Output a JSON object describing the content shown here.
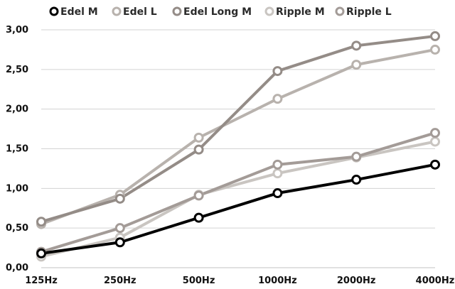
{
  "chart_data": {
    "type": "line",
    "categories": [
      "125Hz",
      "250Hz",
      "500Hz",
      "1000Hz",
      "2000Hz",
      "4000Hz"
    ],
    "ylim": [
      0,
      3
    ],
    "yticks": [
      0,
      0.5,
      1,
      1.5,
      2,
      2.5,
      3
    ],
    "ytick_labels": [
      "0,00",
      "0,50",
      "1,00",
      "1,50",
      "2,00",
      "2,50",
      "3,00"
    ],
    "grid": "horizontal",
    "legend_position": "top",
    "series": [
      {
        "name": "Edel M",
        "color": "#000000",
        "values": [
          0.18,
          0.32,
          0.63,
          0.94,
          1.11,
          1.3
        ]
      },
      {
        "name": "Edel L",
        "color": "#b8b2ad",
        "values": [
          0.55,
          0.92,
          1.64,
          2.13,
          2.56,
          2.75
        ]
      },
      {
        "name": "Edel Long M",
        "color": "#948c87",
        "values": [
          0.58,
          0.87,
          1.49,
          2.48,
          2.8,
          2.92
        ]
      },
      {
        "name": "Ripple M",
        "color": "#c9c5c1",
        "values": [
          0.14,
          0.38,
          0.92,
          1.19,
          1.39,
          1.59
        ]
      },
      {
        "name": "Ripple L",
        "color": "#a39b97",
        "values": [
          0.2,
          0.5,
          0.91,
          1.3,
          1.4,
          1.7
        ]
      }
    ]
  }
}
